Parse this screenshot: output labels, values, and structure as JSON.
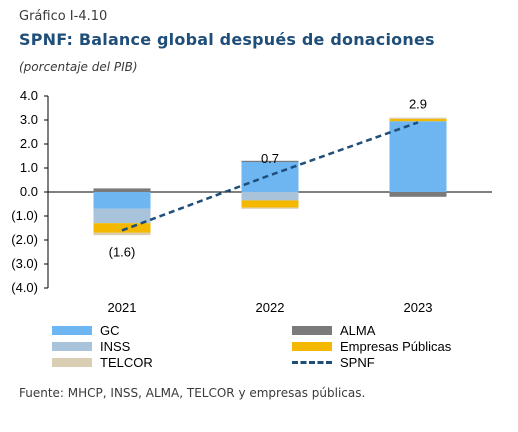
{
  "header": {
    "figure_label": "Gráfico I-4.10",
    "title": "SPNF: Balance global después de donaciones",
    "subtitle": "(porcentaje del PIB)"
  },
  "source": "Fuente: MHCP, INSS, ALMA, TELCOR  y empresas públicas.",
  "colors": {
    "GC": "#6db6f2",
    "ALMA": "#7a7a7a",
    "INSS": "#a9c3da",
    "Empresas Públicas": "#f5b800",
    "TELCOR": "#d9cdb3",
    "SPNF": "#1f4e79"
  },
  "chart_data": {
    "type": "bar",
    "stacked": true,
    "categories": [
      "2021",
      "2022",
      "2023"
    ],
    "series": [
      {
        "name": "GC",
        "kind": "bar",
        "values": [
          -0.7,
          1.25,
          2.95
        ]
      },
      {
        "name": "ALMA",
        "kind": "bar",
        "values": [
          0.15,
          0.05,
          -0.2
        ]
      },
      {
        "name": "INSS",
        "kind": "bar",
        "values": [
          -0.6,
          -0.35,
          0.0
        ]
      },
      {
        "name": "Empresas Públicas",
        "kind": "bar",
        "values": [
          -0.4,
          -0.3,
          0.1
        ]
      },
      {
        "name": "TELCOR",
        "kind": "bar",
        "values": [
          -0.1,
          -0.05,
          0.05
        ]
      },
      {
        "name": "SPNF",
        "kind": "line",
        "values": [
          -1.6,
          0.7,
          2.9
        ]
      }
    ],
    "data_labels": [
      "(1.6)",
      "0.7",
      "2.9"
    ],
    "y_ticks": [
      "4.0",
      "3.0",
      "2.0",
      "1.0",
      "0.0",
      "(1.0)",
      "(2.0)",
      "(3.0)",
      "(4.0)"
    ],
    "ylim": [
      -4,
      4
    ],
    "grid": false,
    "legend_position": "bottom",
    "legend": [
      "GC",
      "ALMA",
      "INSS",
      "Empresas Públicas",
      "TELCOR",
      "SPNF"
    ]
  }
}
